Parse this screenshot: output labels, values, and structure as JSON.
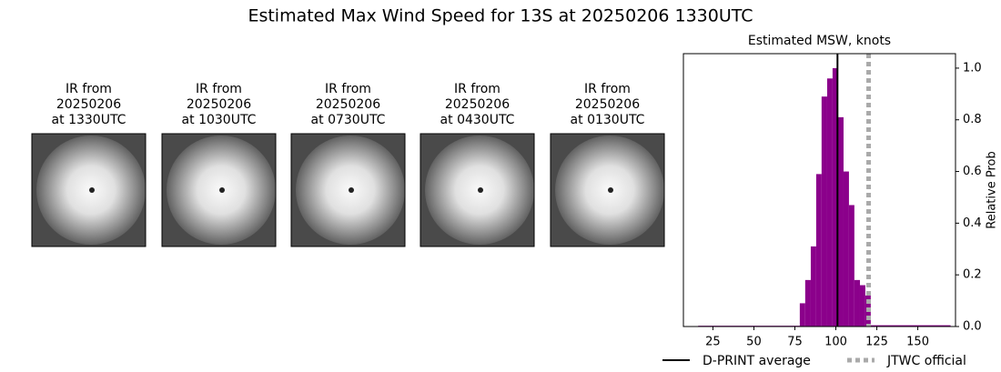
{
  "title": "Estimated Max Wind Speed for 13S at 20250206 1330UTC",
  "panels": [
    {
      "lines": [
        "IR from",
        "20250206",
        "at 1330UTC"
      ]
    },
    {
      "lines": [
        "IR from",
        "20250206",
        "at 1030UTC"
      ]
    },
    {
      "lines": [
        "IR from",
        "20250206",
        "at 0730UTC"
      ]
    },
    {
      "lines": [
        "IR from",
        "20250206",
        "at 0430UTC"
      ]
    },
    {
      "lines": [
        "IR from",
        "20250206",
        "at 0130UTC"
      ]
    }
  ],
  "chart_data": {
    "type": "histogram",
    "title": "Estimated MSW, knots",
    "ylabel": "Relative Prob",
    "bins": [
      16,
      78,
      81.3,
      84.7,
      88,
      91.3,
      94.7,
      98,
      101.3,
      104.7,
      108,
      111.3,
      114.7,
      118,
      121.3,
      170
    ],
    "counts": [
      0.003,
      0.09,
      0.18,
      0.31,
      0.59,
      0.89,
      0.96,
      1.0,
      0.81,
      0.6,
      0.47,
      0.18,
      0.16,
      0.12,
      0.005
    ],
    "color": "#8b008b",
    "xlim": [
      7,
      173
    ],
    "ylim": [
      0,
      1.056
    ],
    "xticks": [
      25,
      50,
      75,
      100,
      125,
      150
    ],
    "yticks": [
      {
        "value": 0,
        "label": "0.0"
      },
      {
        "value": 0.2,
        "label": "0.2"
      },
      {
        "value": 0.4,
        "label": "0.4"
      },
      {
        "value": 0.6,
        "label": "0.6"
      },
      {
        "value": 0.8,
        "label": "0.8"
      },
      {
        "value": 1.0,
        "label": "1.0"
      }
    ],
    "lines": [
      {
        "name": "D-PRINT average",
        "value": 101,
        "color": "#000000",
        "style": "solid"
      },
      {
        "name": "JTWC official",
        "value": 120,
        "color": "#aaaaaa",
        "style": "dotted"
      }
    ]
  }
}
